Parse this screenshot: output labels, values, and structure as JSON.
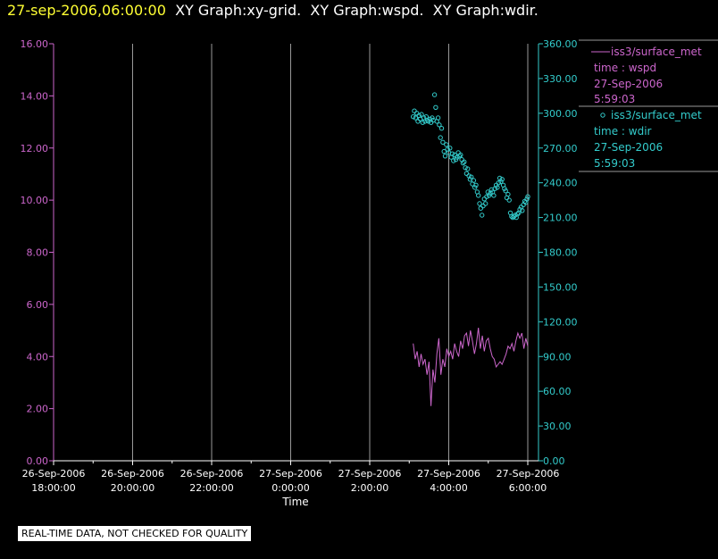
{
  "header": {
    "timestamp": "27-sep-2006,06:00:00",
    "titles": [
      "XY Graph:xy-grid.",
      "XY Graph:wspd.",
      "XY Graph:wdir."
    ]
  },
  "footer": {
    "note": "REAL-TIME DATA, NOT CHECKED FOR QUALITY"
  },
  "colors": {
    "wspd": "#cc66cc",
    "wdir": "#33cccc",
    "grid": "#999999",
    "background": "#000000"
  },
  "chart_data": {
    "type": "line",
    "title": "",
    "xlabel": "Time",
    "x_unit": "hours relative to 27-Sep-2006 0:00:00",
    "xlim": [
      -6,
      6.4
    ],
    "x_ticks": [
      {
        "x": -6,
        "date": "26-Sep-2006",
        "time": "18:00:00"
      },
      {
        "x": -4,
        "date": "26-Sep-2006",
        "time": "20:00:00"
      },
      {
        "x": -2,
        "date": "26-Sep-2006",
        "time": "22:00:00"
      },
      {
        "x": 0,
        "date": "27-Sep-2006",
        "time": "0:00:00"
      },
      {
        "x": 2,
        "date": "27-Sep-2006",
        "time": "2:00:00"
      },
      {
        "x": 4,
        "date": "27-Sep-2006",
        "time": "4:00:00"
      },
      {
        "x": 6,
        "date": "27-Sep-2006",
        "time": "6:00:00"
      }
    ],
    "grid": true,
    "left_axis": {
      "ylim": [
        0,
        16
      ],
      "ticks": [
        "0.00",
        "2.00",
        "4.00",
        "6.00",
        "8.00",
        "10.00",
        "12.00",
        "14.00",
        "16.00"
      ]
    },
    "right_axis": {
      "ylim": [
        0,
        360
      ],
      "ticks": [
        "0.00",
        "30.00",
        "60.00",
        "90.00",
        "120.00",
        "150.00",
        "180.00",
        "210.00",
        "240.00",
        "270.00",
        "300.00",
        "330.00",
        "360.00"
      ]
    },
    "legend_position": "right",
    "series": [
      {
        "name": "iss3/surface_met",
        "legend_lines": [
          "time : wspd",
          "27-Sep-2006",
          "5:59:03"
        ],
        "axis": "left",
        "style": "line",
        "x": [
          3.1,
          3.15,
          3.2,
          3.25,
          3.3,
          3.35,
          3.4,
          3.45,
          3.5,
          3.55,
          3.6,
          3.65,
          3.7,
          3.75,
          3.8,
          3.85,
          3.9,
          3.95,
          4.0,
          4.05,
          4.1,
          4.15,
          4.2,
          4.25,
          4.3,
          4.35,
          4.4,
          4.45,
          4.5,
          4.55,
          4.6,
          4.65,
          4.7,
          4.75,
          4.8,
          4.85,
          4.9,
          4.95,
          5.0,
          5.05,
          5.1,
          5.15,
          5.2,
          5.25,
          5.3,
          5.35,
          5.4,
          5.45,
          5.5,
          5.55,
          5.6,
          5.65,
          5.7,
          5.75,
          5.8,
          5.85,
          5.9,
          5.95,
          6.0
        ],
        "y": [
          4.5,
          3.9,
          4.2,
          3.6,
          4.1,
          3.7,
          3.9,
          3.3,
          3.8,
          2.1,
          3.5,
          3.0,
          4.1,
          4.7,
          3.3,
          3.9,
          3.6,
          4.3,
          4.0,
          4.2,
          3.9,
          4.5,
          4.2,
          4.0,
          4.6,
          4.3,
          4.8,
          4.9,
          4.4,
          5.0,
          4.6,
          4.1,
          4.5,
          5.1,
          4.3,
          4.8,
          4.2,
          4.6,
          4.7,
          4.3,
          4.0,
          3.9,
          3.6,
          3.7,
          3.8,
          3.7,
          3.9,
          4.1,
          4.4,
          4.3,
          4.5,
          4.2,
          4.6,
          4.9,
          4.7,
          4.9,
          4.3,
          4.7,
          4.4
        ]
      },
      {
        "name": "iss3/surface_met",
        "legend_lines": [
          "time : wdir",
          "27-Sep-2006",
          "5:59:03"
        ],
        "axis": "right",
        "style": "scatter",
        "x": [
          3.1,
          3.13,
          3.16,
          3.19,
          3.22,
          3.25,
          3.28,
          3.31,
          3.34,
          3.37,
          3.4,
          3.43,
          3.46,
          3.49,
          3.52,
          3.55,
          3.58,
          3.61,
          3.64,
          3.67,
          3.7,
          3.73,
          3.76,
          3.79,
          3.82,
          3.85,
          3.88,
          3.91,
          3.94,
          3.97,
          4.0,
          4.03,
          4.06,
          4.09,
          4.12,
          4.15,
          4.18,
          4.21,
          4.24,
          4.27,
          4.3,
          4.33,
          4.36,
          4.39,
          4.42,
          4.45,
          4.48,
          4.51,
          4.54,
          4.57,
          4.6,
          4.63,
          4.66,
          4.69,
          4.72,
          4.75,
          4.78,
          4.81,
          4.84,
          4.87,
          4.9,
          4.93,
          4.96,
          4.99,
          5.02,
          5.05,
          5.08,
          5.11,
          5.14,
          5.17,
          5.2,
          5.23,
          5.26,
          5.29,
          5.32,
          5.35,
          5.38,
          5.41,
          5.44,
          5.47,
          5.5,
          5.53,
          5.56,
          5.59,
          5.62,
          5.65,
          5.68,
          5.71,
          5.74,
          5.77,
          5.8,
          5.83,
          5.86,
          5.89,
          5.92,
          5.95,
          5.98,
          6.0
        ],
        "y": [
          297,
          302,
          296,
          300,
          293,
          298,
          295,
          299,
          292,
          296,
          293,
          297,
          294,
          293,
          295,
          292,
          296,
          294,
          316,
          305,
          293,
          296,
          290,
          279,
          287,
          275,
          267,
          263,
          273,
          269,
          266,
          270,
          262,
          265,
          259,
          264,
          260,
          262,
          266,
          263,
          264,
          260,
          257,
          258,
          253,
          248,
          252,
          246,
          243,
          245,
          239,
          242,
          236,
          238,
          232,
          229,
          222,
          218,
          212,
          220,
          226,
          222,
          228,
          232,
          229,
          231,
          234,
          232,
          229,
          235,
          238,
          236,
          240,
          244,
          241,
          243,
          238,
          235,
          233,
          227,
          230,
          225,
          214,
          211,
          210,
          211,
          212,
          210,
          213,
          214,
          217,
          219,
          216,
          221,
          224,
          223,
          226,
          228
        ]
      }
    ]
  }
}
